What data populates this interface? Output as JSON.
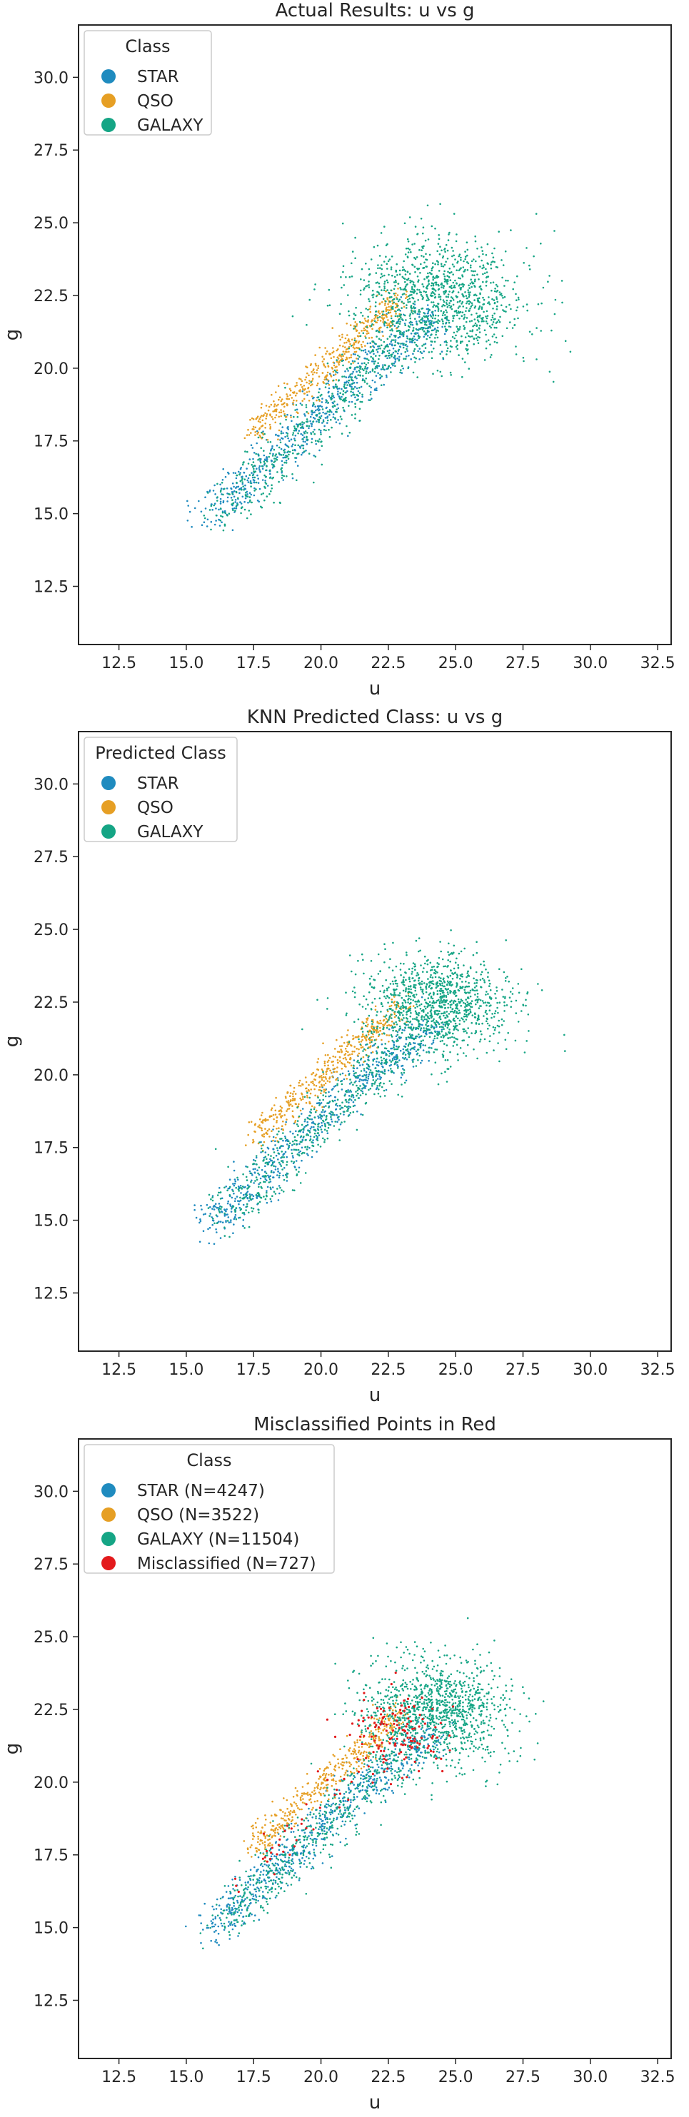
{
  "colors": {
    "star": "#1f8bbf",
    "qso": "#e69f24",
    "galaxy": "#15a585",
    "misclassified": "#e31a1c",
    "axes": "#262626",
    "background": "#ffffff"
  },
  "chart_data": [
    {
      "type": "scatter",
      "title": "Actual Results: u vs g",
      "xlabel": "u",
      "ylabel": "g",
      "xlim": [
        11.0,
        33.0
      ],
      "ylim": [
        10.5,
        31.8
      ],
      "xticks": [
        "12.5",
        "15.0",
        "17.5",
        "20.0",
        "22.5",
        "25.0",
        "27.5",
        "30.0",
        "32.5"
      ],
      "yticks": [
        "12.5",
        "15.0",
        "17.5",
        "20.0",
        "22.5",
        "25.0",
        "27.5",
        "30.0"
      ],
      "grid": false,
      "legend": {
        "title": "Class",
        "location": "top-left",
        "entries": [
          "STAR",
          "QSO",
          "GALAXY"
        ]
      },
      "series": [
        {
          "name": "STAR",
          "color_key": "star"
        },
        {
          "name": "QSO",
          "color_key": "qso"
        },
        {
          "name": "GALAXY",
          "color_key": "galaxy"
        }
      ]
    },
    {
      "type": "scatter",
      "title": "KNN Predicted Class: u vs g",
      "xlabel": "u",
      "ylabel": "g",
      "xlim": [
        11.0,
        33.0
      ],
      "ylim": [
        10.5,
        31.8
      ],
      "xticks": [
        "12.5",
        "15.0",
        "17.5",
        "20.0",
        "22.5",
        "25.0",
        "27.5",
        "30.0",
        "32.5"
      ],
      "yticks": [
        "12.5",
        "15.0",
        "17.5",
        "20.0",
        "22.5",
        "25.0",
        "27.5",
        "30.0"
      ],
      "grid": false,
      "legend": {
        "title": "Predicted Class",
        "location": "top-left",
        "entries": [
          "STAR",
          "QSO",
          "GALAXY"
        ]
      },
      "series": [
        {
          "name": "STAR",
          "color_key": "star"
        },
        {
          "name": "QSO",
          "color_key": "qso"
        },
        {
          "name": "GALAXY",
          "color_key": "galaxy"
        }
      ]
    },
    {
      "type": "scatter",
      "title": "Misclassified Points in Red",
      "xlabel": "u",
      "ylabel": "g",
      "xlim": [
        11.0,
        33.0
      ],
      "ylim": [
        10.5,
        31.8
      ],
      "xticks": [
        "12.5",
        "15.0",
        "17.5",
        "20.0",
        "22.5",
        "25.0",
        "27.5",
        "30.0",
        "32.5"
      ],
      "yticks": [
        "12.5",
        "15.0",
        "17.5",
        "20.0",
        "22.5",
        "25.0",
        "27.5",
        "30.0"
      ],
      "grid": false,
      "legend": {
        "title": "Class",
        "location": "top-left",
        "entries": [
          "STAR (N=4247)",
          "QSO (N=3522)",
          "GALAXY (N=11504)",
          "Misclassified (N=727)"
        ]
      },
      "series": [
        {
          "name": "STAR (N=4247)",
          "color_key": "star"
        },
        {
          "name": "QSO (N=3522)",
          "color_key": "qso"
        },
        {
          "name": "GALAXY (N=11504)",
          "color_key": "galaxy"
        },
        {
          "name": "Misclassified (N=727)",
          "color_key": "misclassified"
        }
      ]
    }
  ]
}
